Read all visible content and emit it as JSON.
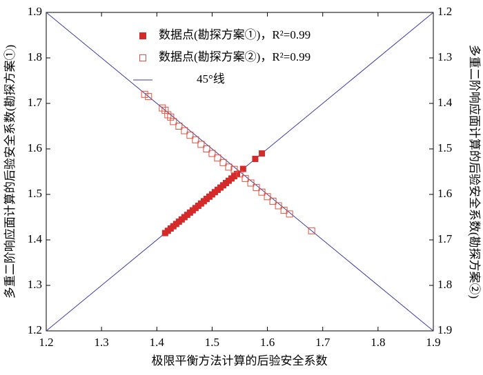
{
  "chart_data": {
    "type": "scatter",
    "x_label": "极限平衡方法计算的后验安全系数",
    "y_label": "多重二阶响应面计算的后验安全系数(勘探方案①)",
    "y2_label": "多重二阶响应面计算的后验安全系数(勘探方案②)",
    "xlim": [
      1.2,
      1.9
    ],
    "xticks": [
      1.2,
      1.3,
      1.4,
      1.5,
      1.6,
      1.7,
      1.8,
      1.9
    ],
    "ylim": [
      1.2,
      1.9
    ],
    "yticks": [
      1.2,
      1.3,
      1.4,
      1.5,
      1.6,
      1.7,
      1.8,
      1.9
    ],
    "y2lim": [
      1.9,
      1.2
    ],
    "y2ticks": [
      1.2,
      1.3,
      1.4,
      1.5,
      1.6,
      1.7,
      1.8,
      1.9
    ],
    "legend": "top-left",
    "series": [
      {
        "name": "数据点(勘探方案①)，R²=0.99",
        "marker": "filled-square",
        "color": "#d42a2a",
        "x": [
          1.415,
          1.42,
          1.425,
          1.43,
          1.435,
          1.44,
          1.445,
          1.45,
          1.455,
          1.46,
          1.465,
          1.47,
          1.475,
          1.48,
          1.485,
          1.49,
          1.495,
          1.5,
          1.505,
          1.51,
          1.515,
          1.52,
          1.525,
          1.53,
          1.535,
          1.54,
          1.545,
          1.556,
          1.578,
          1.59
        ],
        "values": [
          1.415,
          1.42,
          1.425,
          1.43,
          1.435,
          1.44,
          1.445,
          1.45,
          1.455,
          1.46,
          1.465,
          1.47,
          1.475,
          1.48,
          1.485,
          1.49,
          1.495,
          1.5,
          1.505,
          1.51,
          1.515,
          1.52,
          1.525,
          1.53,
          1.535,
          1.54,
          1.545,
          1.556,
          1.578,
          1.59
        ]
      },
      {
        "name": "数据点(勘探方案②)，R²=0.99",
        "marker": "hollow-square",
        "color": "#e0503c",
        "axis": "y2",
        "x": [
          1.378,
          1.385,
          1.41,
          1.415,
          1.42,
          1.425,
          1.43,
          1.44,
          1.45,
          1.46,
          1.47,
          1.48,
          1.49,
          1.5,
          1.51,
          1.52,
          1.53,
          1.54,
          1.55,
          1.56,
          1.57,
          1.58,
          1.59,
          1.6,
          1.61,
          1.62,
          1.63,
          1.64,
          1.68
        ],
        "values": [
          1.38,
          1.385,
          1.41,
          1.415,
          1.425,
          1.43,
          1.44,
          1.45,
          1.46,
          1.47,
          1.48,
          1.49,
          1.5,
          1.51,
          1.52,
          1.53,
          1.54,
          1.545,
          1.555,
          1.565,
          1.575,
          1.585,
          1.595,
          1.605,
          1.615,
          1.625,
          1.635,
          1.643,
          1.68
        ]
      },
      {
        "name": "45°线",
        "marker": "line",
        "color": "#3a3aa0",
        "x": [
          1.2,
          1.9
        ],
        "values": [
          1.2,
          1.9
        ]
      },
      {
        "marker": "line",
        "color": "#3a3aa0",
        "axis": "y2",
        "x": [
          1.2,
          1.9
        ],
        "values": [
          1.2,
          1.9
        ]
      }
    ]
  }
}
